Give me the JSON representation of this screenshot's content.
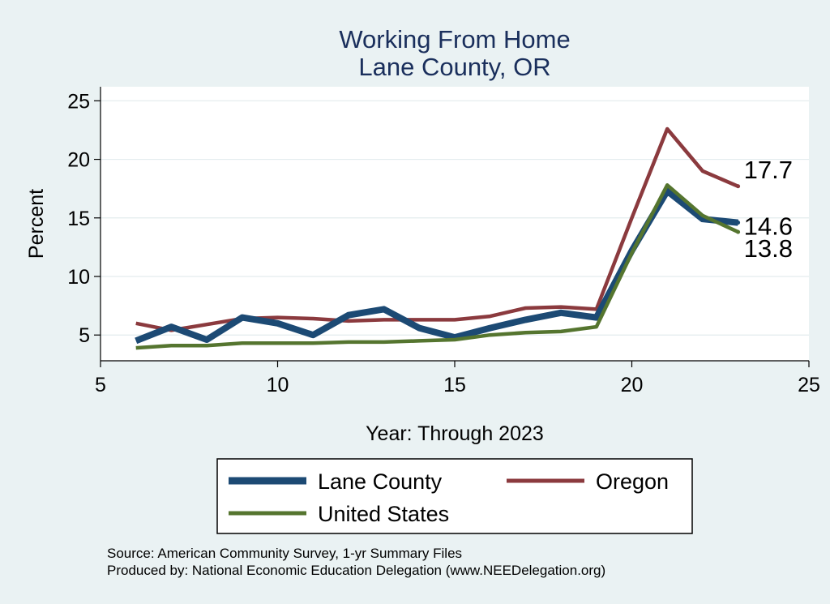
{
  "chart_data": {
    "type": "line",
    "title": [
      "Working From Home",
      "Lane County, OR"
    ],
    "xlabel": "Year: Through 2023",
    "ylabel": "Percent",
    "xlim": [
      5,
      25
    ],
    "ylim": [
      2.8,
      26.2
    ],
    "xticks": [
      5,
      10,
      15,
      20,
      25
    ],
    "yticks": [
      5,
      10,
      15,
      20,
      25
    ],
    "grid": true,
    "series": [
      {
        "name": "Oregon",
        "color": "#8b3a3e",
        "x": [
          6,
          7,
          8,
          9,
          10,
          11,
          12,
          13,
          14,
          15,
          16,
          17,
          18,
          19,
          20,
          21,
          22,
          23
        ],
        "y": [
          6.0,
          5.4,
          5.9,
          6.4,
          6.5,
          6.4,
          6.2,
          6.3,
          6.3,
          6.3,
          6.6,
          7.3,
          7.4,
          7.2,
          15.0,
          22.6,
          19.0,
          17.7
        ],
        "end_label": "17.7"
      },
      {
        "name": "Lane County",
        "color": "#1c4a74",
        "x": [
          6,
          7,
          8,
          9,
          10,
          11,
          12,
          13,
          14,
          15,
          16,
          17,
          18,
          19,
          20,
          21,
          22,
          23
        ],
        "y": [
          4.5,
          5.7,
          4.6,
          6.5,
          6.0,
          5.0,
          6.7,
          7.2,
          5.6,
          4.8,
          5.6,
          6.3,
          6.9,
          6.5,
          12.2,
          17.3,
          14.9,
          14.6
        ],
        "end_label": "14.6"
      },
      {
        "name": "United States",
        "color": "#55752f",
        "x": [
          6,
          7,
          8,
          9,
          10,
          11,
          12,
          13,
          14,
          15,
          16,
          17,
          18,
          19,
          20,
          21,
          22,
          23
        ],
        "y": [
          3.9,
          4.1,
          4.1,
          4.3,
          4.3,
          4.3,
          4.4,
          4.4,
          4.5,
          4.6,
          5.0,
          5.2,
          5.3,
          5.7,
          12.0,
          17.8,
          15.2,
          13.8
        ],
        "end_label": "13.8"
      }
    ],
    "legend": [
      {
        "label": "Lane County",
        "color": "#1c4a74"
      },
      {
        "label": "Oregon",
        "color": "#8b3a3e"
      },
      {
        "label": "United States",
        "color": "#55752f"
      }
    ]
  },
  "notes": {
    "source": "Source: American Community Survey, 1-yr Summary Files",
    "produced": "Produced by: National Economic Education Delegation (www.NEEDelegation.org)"
  }
}
